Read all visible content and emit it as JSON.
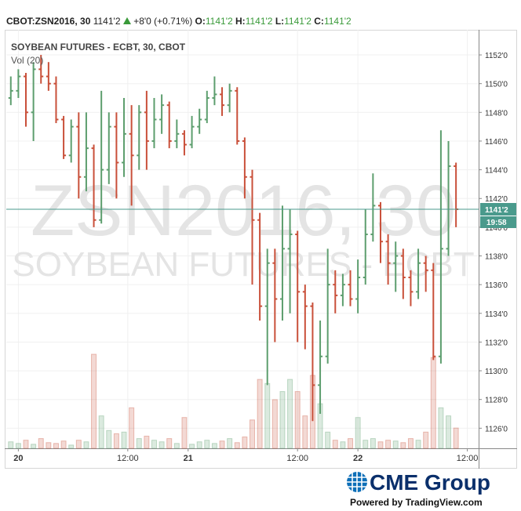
{
  "chart_data": {
    "type": "ohlc",
    "header": {
      "symbol": "CBOT:ZSN2016, 30",
      "price": "1141'2",
      "change": "+8'0 (+0.71%)",
      "fields": [
        {
          "label": "O:",
          "value": "1141'2"
        },
        {
          "label": "H:",
          "value": "1141'2"
        },
        {
          "label": "L:",
          "value": "1141'2"
        },
        {
          "label": "C:",
          "value": "1141'2"
        }
      ]
    },
    "title": "SOYBEAN FUTURES - ECBT, 30, CBOT",
    "volume_label": "Vol (20)",
    "watermark": [
      "ZSN2016, 30",
      "SOYBEAN FUTURES - ECBT"
    ],
    "last_price": {
      "value": 1141.25,
      "label": "1141'2"
    },
    "countdown": "19:58",
    "logo": "CME Group",
    "footer": "Powered by TradingView.com",
    "up_color": "#5d9e6e",
    "down_color": "#c9503a",
    "last_color": "#4a9a8c",
    "xlim": [
      -0.6,
      62
    ],
    "xticks": [
      {
        "value": 1,
        "label": "20"
      },
      {
        "value": 15.5,
        "label": "12:00"
      },
      {
        "value": 23.5,
        "label": "21"
      },
      {
        "value": 38,
        "label": "12:00"
      },
      {
        "value": 46,
        "label": "22"
      },
      {
        "value": 60.5,
        "label": "12:00"
      }
    ],
    "ylim": [
      1124.6,
      1153.75
    ],
    "yticks": [
      {
        "value": 1126,
        "label": "1126'0"
      },
      {
        "value": 1128,
        "label": "1128'0"
      },
      {
        "value": 1130,
        "label": "1130'0"
      },
      {
        "value": 1132,
        "label": "1132'0"
      },
      {
        "value": 1134,
        "label": "1134'0"
      },
      {
        "value": 1136,
        "label": "1136'0"
      },
      {
        "value": 1138,
        "label": "1138'0"
      },
      {
        "value": 1140,
        "label": "1140'0"
      },
      {
        "value": 1142,
        "label": "1142'0"
      },
      {
        "value": 1144,
        "label": "1144'0"
      },
      {
        "value": 1146,
        "label": "1146'0"
      },
      {
        "value": 1148,
        "label": "1148'0"
      },
      {
        "value": 1150,
        "label": "1150'0"
      },
      {
        "value": 1152,
        "label": "1152'0"
      }
    ],
    "grid": true,
    "open": [
      1149,
      1149.5,
      1150.5,
      1148,
      1151,
      1150.5,
      1150,
      1147.5,
      1145,
      1147,
      1143.5,
      1145.5,
      1140.5,
      1144,
      1147,
      1144.5,
      1146.5,
      1145,
      1148,
      1146,
      1147.5,
      1148.5,
      1146,
      1146.5,
      1145.75,
      1147,
      1147.5,
      1149,
      1149.25,
      1148.5,
      1149.5,
      1146,
      1143.5,
      1140.5,
      1134.5,
      1137.5,
      1135,
      1138.5,
      1139.5,
      1135.5,
      1134.5,
      1129,
      1131,
      1136,
      1135.25,
      1136,
      1135,
      1136.5,
      1139.5,
      1141.5,
      1139,
      1137.5,
      1138,
      1136.5,
      1135.5,
      1137.5,
      1137,
      1131,
      1138.5,
      1144.25
    ],
    "high": [
      1150.5,
      1151,
      1150.75,
      1151.5,
      1152,
      1151.5,
      1150.5,
      1147.75,
      1147.5,
      1148,
      1148,
      1145.75,
      1149.5,
      1148,
      1148,
      1149,
      1148.5,
      1148.5,
      1149.5,
      1149,
      1149.25,
      1148.75,
      1147.5,
      1146.75,
      1147.75,
      1148.25,
      1149.5,
      1150.5,
      1149.75,
      1150,
      1149.75,
      1146.25,
      1144,
      1141,
      1138.5,
      1138.5,
      1141.5,
      1141.25,
      1139.75,
      1136,
      1134.75,
      1133.5,
      1138.5,
      1137,
      1136.75,
      1137,
      1137.75,
      1141.25,
      1143.75,
      1141.75,
      1139.5,
      1139,
      1138.5,
      1137,
      1138.5,
      1138,
      1137.5,
      1146.75,
      1146,
      1144.5
    ],
    "low": [
      1148.5,
      1149,
      1147,
      1146,
      1150,
      1149.5,
      1147.25,
      1144.75,
      1144.5,
      1142,
      1142.5,
      1140,
      1140.25,
      1143,
      1142,
      1143.5,
      1141.5,
      1144,
      1144,
      1145.5,
      1146.5,
      1145.5,
      1145.5,
      1145,
      1145.5,
      1146.5,
      1147.25,
      1148.5,
      1147.75,
      1148,
      1145.75,
      1142,
      1136,
      1133.5,
      1129,
      1132,
      1133.5,
      1134,
      1132,
      1131.5,
      1126.5,
      1127,
      1130.5,
      1134,
      1134.5,
      1134.5,
      1134,
      1136,
      1139,
      1137.5,
      1136,
      1135.5,
      1135,
      1134.5,
      1135,
      1135.5,
      1130.75,
      1130.5,
      1138,
      1140
    ],
    "close": [
      1149.5,
      1150.5,
      1148,
      1151,
      1150.5,
      1150,
      1147.5,
      1145,
      1147,
      1143.5,
      1145.5,
      1140.5,
      1144,
      1147,
      1144.5,
      1146.5,
      1145,
      1148,
      1146,
      1147.5,
      1148.5,
      1146,
      1146.5,
      1145.75,
      1147,
      1147.5,
      1149,
      1149.25,
      1148.5,
      1149.5,
      1146,
      1143.5,
      1140.5,
      1134.5,
      1137.5,
      1135,
      1138.5,
      1139.5,
      1135.5,
      1134.5,
      1129,
      1131,
      1136,
      1135.25,
      1136,
      1135,
      1136.5,
      1139.5,
      1141.5,
      1139,
      1137.5,
      1138,
      1136.5,
      1135.5,
      1137.5,
      1137,
      1131,
      1138.5,
      1144.25,
      1141.25
    ],
    "volume": [
      8,
      6,
      10,
      5,
      12,
      7,
      6,
      9,
      4,
      10,
      8,
      116,
      40,
      22,
      18,
      20,
      50,
      12,
      15,
      10,
      8,
      12,
      6,
      38,
      5,
      8,
      10,
      6,
      9,
      12,
      7,
      14,
      35,
      85,
      80,
      60,
      70,
      85,
      70,
      40,
      90,
      55,
      20,
      10,
      8,
      12,
      38,
      10,
      12,
      8,
      10,
      9,
      7,
      12,
      10,
      20,
      112,
      50,
      40,
      25
    ]
  }
}
